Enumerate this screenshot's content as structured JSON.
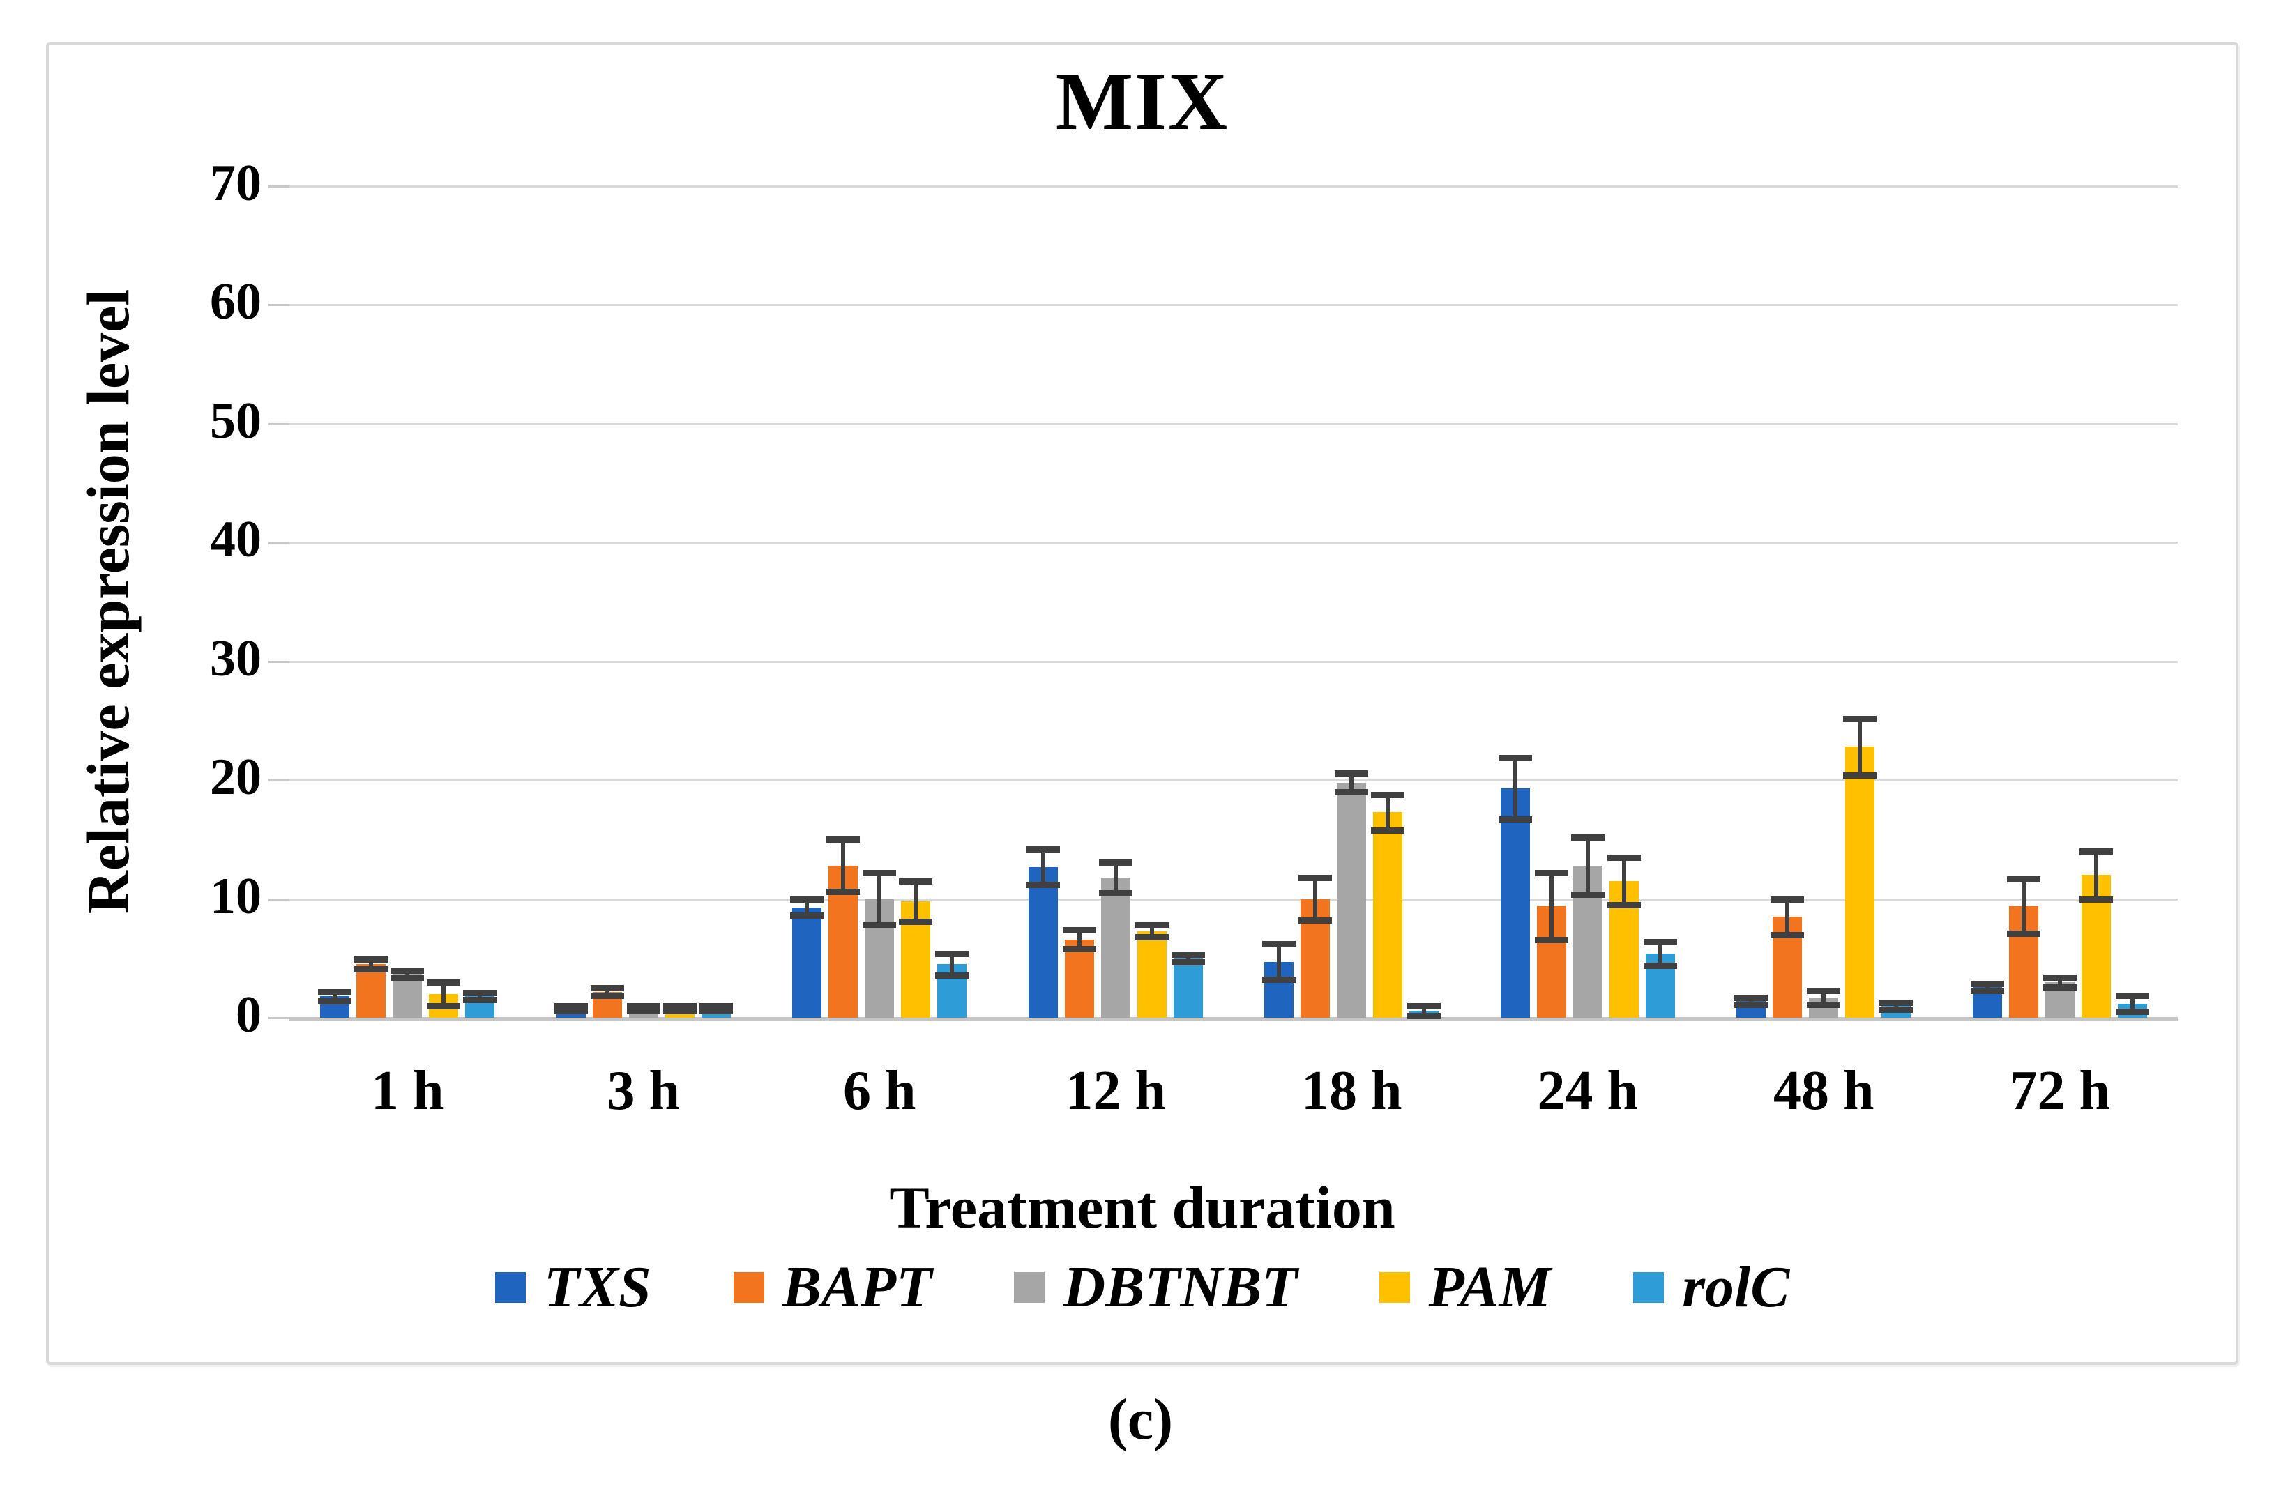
{
  "figure": {
    "caption": "(c)"
  },
  "chart_data": {
    "type": "bar",
    "title": "MIX",
    "xlabel": "Treatment duration",
    "ylabel": "Relative expression level",
    "categories": [
      "1 h",
      "3 h",
      "6 h",
      "12 h",
      "18 h",
      "24 h",
      "48 h",
      "72 h"
    ],
    "ylim": [
      0,
      70
    ],
    "ytick_interval": 10,
    "grid": true,
    "legend_position": "bottom",
    "error_bars": true,
    "series": [
      {
        "name": "TXS",
        "color": "#1f64be",
        "values": [
          1.8,
          0.8,
          9.3,
          12.7,
          4.7,
          19.3,
          1.4,
          2.6
        ],
        "errors": [
          0.4,
          0.2,
          0.7,
          1.5,
          1.5,
          2.6,
          0.3,
          0.3
        ]
      },
      {
        "name": "BAPT",
        "color": "#f2741f",
        "values": [
          4.5,
          2.2,
          12.8,
          6.6,
          10.0,
          9.4,
          8.5,
          9.4
        ],
        "errors": [
          0.4,
          0.3,
          2.2,
          0.8,
          1.8,
          2.8,
          1.5,
          2.3
        ]
      },
      {
        "name": "DBTNBT",
        "color": "#a6a6a6",
        "values": [
          3.7,
          0.8,
          10.0,
          11.8,
          19.8,
          12.8,
          1.7,
          3.0
        ],
        "errors": [
          0.3,
          0.2,
          2.2,
          1.3,
          0.8,
          2.4,
          0.6,
          0.4
        ]
      },
      {
        "name": "PAM",
        "color": "#ffc000",
        "values": [
          2.0,
          0.8,
          9.8,
          7.3,
          17.3,
          11.5,
          22.8,
          12.0
        ],
        "errors": [
          1.0,
          0.2,
          1.7,
          0.5,
          1.5,
          2.0,
          2.4,
          2.0
        ]
      },
      {
        "name": "rolC",
        "color": "#2e9cd6",
        "values": [
          1.8,
          0.8,
          4.5,
          5.0,
          0.6,
          5.4,
          1.0,
          1.2
        ],
        "errors": [
          0.3,
          0.2,
          0.9,
          0.3,
          0.4,
          1.0,
          0.3,
          0.7
        ]
      }
    ],
    "style": {
      "error_bar_color": "#404040",
      "gridline_color": "#d9d9d9",
      "zero_line_color": "#c6c6c6",
      "frame_border_color": "#d9d9d9"
    }
  }
}
